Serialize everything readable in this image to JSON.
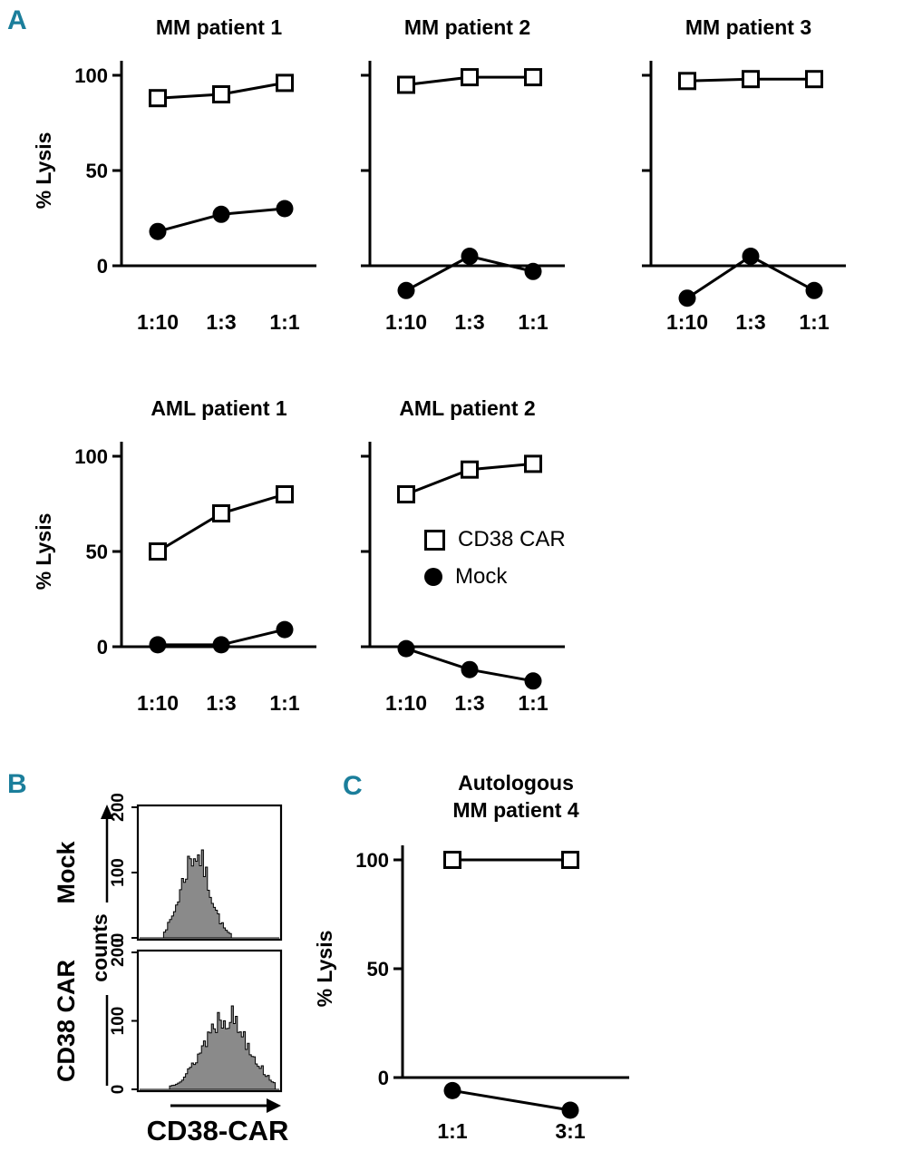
{
  "colors": {
    "panel_label": "#1b7e9b",
    "ink": "#000000",
    "background": "#ffffff",
    "hist_fill": "#8a8a8a"
  },
  "panels": {
    "a": {
      "label": "A"
    },
    "b": {
      "label": "B"
    },
    "c": {
      "label": "C"
    }
  },
  "legend": {
    "items": [
      {
        "label": "CD38 CAR",
        "marker": "open-square"
      },
      {
        "label": "Mock",
        "marker": "filled-circle"
      }
    ]
  },
  "chart_data": [
    {
      "id": "mm1",
      "type": "line",
      "title": "MM patient 1",
      "ylabel": "% Lysis",
      "yticks": [
        0,
        50,
        100
      ],
      "ylim": [
        -25,
        105
      ],
      "categories": [
        "1:10",
        "1:3",
        "1:1"
      ],
      "series": [
        {
          "name": "CD38 CAR",
          "marker": "open-square",
          "values": [
            88,
            90,
            96
          ]
        },
        {
          "name": "Mock",
          "marker": "filled-circle",
          "values": [
            18,
            27,
            30
          ]
        }
      ]
    },
    {
      "id": "mm2",
      "type": "line",
      "title": "MM patient 2",
      "ylabel": "% Lysis",
      "yticks": [
        0,
        50,
        100
      ],
      "ylim": [
        -25,
        105
      ],
      "categories": [
        "1:10",
        "1:3",
        "1:1"
      ],
      "series": [
        {
          "name": "CD38 CAR",
          "marker": "open-square",
          "values": [
            95,
            99,
            99
          ]
        },
        {
          "name": "Mock",
          "marker": "filled-circle",
          "values": [
            -13,
            5,
            -3
          ]
        }
      ]
    },
    {
      "id": "mm3",
      "type": "line",
      "title": "MM patient 3",
      "ylabel": "% Lysis",
      "yticks": [
        0,
        50,
        100
      ],
      "ylim": [
        -25,
        105
      ],
      "categories": [
        "1:10",
        "1:3",
        "1:1"
      ],
      "series": [
        {
          "name": "CD38 CAR",
          "marker": "open-square",
          "values": [
            97,
            98,
            98
          ]
        },
        {
          "name": "Mock",
          "marker": "filled-circle",
          "values": [
            -17,
            5,
            -13
          ]
        }
      ]
    },
    {
      "id": "aml1",
      "type": "line",
      "title": "AML patient 1",
      "ylabel": "% Lysis",
      "yticks": [
        0,
        50,
        100
      ],
      "ylim": [
        -25,
        105
      ],
      "categories": [
        "1:10",
        "1:3",
        "1:1"
      ],
      "series": [
        {
          "name": "CD38 CAR",
          "marker": "open-square",
          "values": [
            50,
            70,
            80
          ]
        },
        {
          "name": "Mock",
          "marker": "filled-circle",
          "values": [
            1,
            1,
            9
          ]
        }
      ]
    },
    {
      "id": "aml2",
      "type": "line",
      "title": "AML patient 2",
      "ylabel": "% Lysis",
      "yticks": [
        0,
        50,
        100
      ],
      "ylim": [
        -25,
        105
      ],
      "categories": [
        "1:10",
        "1:3",
        "1:1"
      ],
      "series": [
        {
          "name": "CD38 CAR",
          "marker": "open-square",
          "values": [
            80,
            93,
            96
          ]
        },
        {
          "name": "Mock",
          "marker": "filled-circle",
          "values": [
            -1,
            -12,
            -18
          ]
        }
      ]
    },
    {
      "id": "autologous",
      "type": "line",
      "title": "Autologous MM patient 4",
      "title_lines": [
        "Autologous",
        "MM patient 4"
      ],
      "ylabel": "% Lysis",
      "yticks": [
        0,
        50,
        100
      ],
      "ylim": [
        -20,
        105
      ],
      "categories": [
        "1:1",
        "3:1"
      ],
      "series": [
        {
          "name": "CD38 CAR",
          "marker": "open-square",
          "values": [
            100,
            100
          ]
        },
        {
          "name": "Mock",
          "marker": "filled-circle",
          "values": [
            -6,
            -15
          ]
        }
      ]
    },
    {
      "id": "hist-mock",
      "type": "histogram",
      "row_label": "Mock",
      "ylabel": "counts",
      "yticks": [
        0,
        100,
        200
      ],
      "xlabel": "CD38-CAR",
      "peak_frac": 0.4,
      "spread_frac": 0.1,
      "start_frac": 0.17,
      "end_frac": 0.66,
      "max_count": 130,
      "seed": 7
    },
    {
      "id": "hist-car",
      "type": "histogram",
      "row_label": "CD38 CAR",
      "ylabel": "counts",
      "yticks": [
        0,
        100,
        200
      ],
      "xlabel": "CD38-CAR",
      "peak_frac": 0.62,
      "spread_frac": 0.16,
      "start_frac": 0.22,
      "end_frac": 0.97,
      "max_count": 110,
      "seed": 13
    }
  ]
}
